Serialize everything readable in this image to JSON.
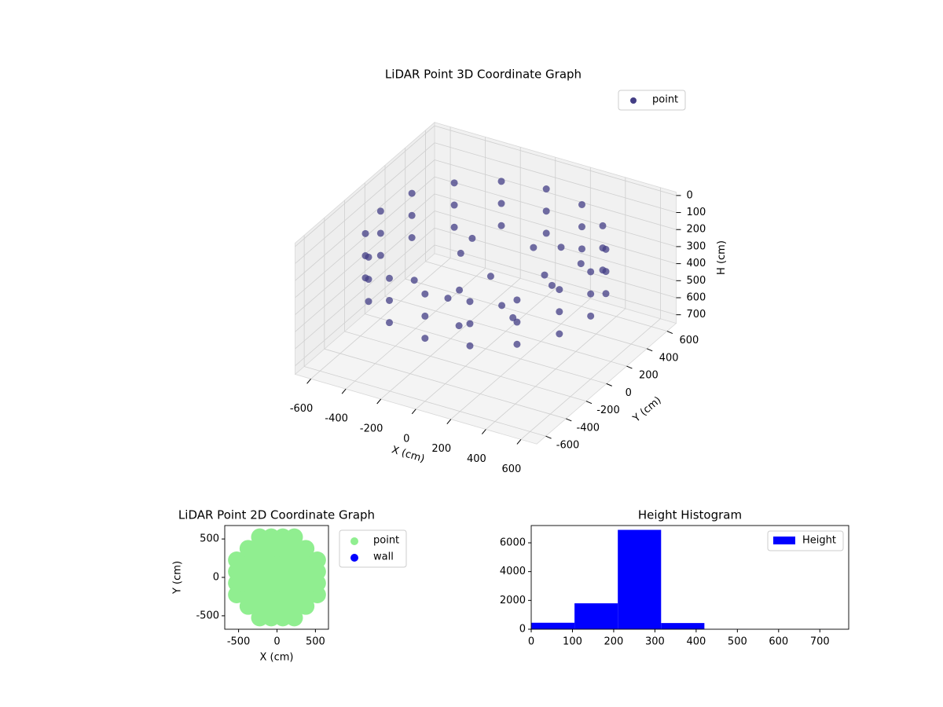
{
  "chart_data": [
    {
      "type": "scatter3d",
      "title": "LiDAR Point 3D Coordinate Graph",
      "xlabel": "X (cm)",
      "ylabel": "Y (cm)",
      "zlabel": "H (cm)",
      "xlim": [
        -690,
        690
      ],
      "ylim": [
        -690,
        690
      ],
      "zlim": [
        750,
        -20
      ],
      "xticks": [
        -600,
        -400,
        -200,
        0,
        200,
        400,
        600
      ],
      "yticks": [
        -600,
        -400,
        -200,
        0,
        200,
        400,
        600
      ],
      "zticks": [
        0,
        100,
        200,
        300,
        400,
        500,
        600,
        700
      ],
      "grid": true,
      "legend": "upper right",
      "series": [
        {
          "name": "point",
          "color": "#433e85",
          "x": [
            600,
            600,
            600,
            554,
            554,
            554,
            424,
            424,
            424,
            230,
            230,
            230,
            0,
            0,
            0,
            -230,
            -230,
            -230,
            -424,
            -424,
            -424,
            -554,
            -554,
            -554,
            -600,
            -600,
            -600,
            -554,
            -554,
            -554,
            -424,
            -424,
            -424,
            -230,
            -230,
            -230,
            0,
            0,
            0,
            230,
            230,
            230,
            424,
            424,
            424,
            554,
            554,
            554,
            -200,
            0,
            150,
            -100,
            250,
            300,
            -350,
            100,
            -250,
            200,
            50,
            -150,
            350,
            400
          ],
          "y": [
            0,
            0,
            0,
            230,
            230,
            230,
            424,
            424,
            424,
            554,
            554,
            554,
            600,
            600,
            600,
            554,
            554,
            554,
            424,
            424,
            424,
            230,
            230,
            230,
            0,
            0,
            0,
            -230,
            -230,
            -230,
            -424,
            -424,
            -424,
            -554,
            -554,
            -554,
            -600,
            -600,
            -600,
            -554,
            -554,
            -554,
            -424,
            -424,
            -424,
            -230,
            -230,
            -230,
            100,
            50,
            -100,
            -200,
            150,
            -250,
            -100,
            300,
            300,
            400,
            -350,
            0,
            50,
            250
          ],
          "z": [
            120,
            250,
            380,
            120,
            250,
            380,
            120,
            250,
            380,
            120,
            250,
            380,
            120,
            250,
            380,
            120,
            250,
            380,
            120,
            250,
            380,
            120,
            250,
            380,
            120,
            250,
            380,
            120,
            250,
            380,
            120,
            250,
            380,
            120,
            250,
            380,
            120,
            250,
            380,
            120,
            250,
            380,
            120,
            250,
            380,
            120,
            250,
            380,
            300,
            350,
            400,
            380,
            320,
            350,
            400,
            280,
            330,
            300,
            420,
            450,
            300,
            260
          ]
        }
      ]
    },
    {
      "type": "scatter",
      "title": "LiDAR Point 2D Coordinate Graph",
      "xlabel": "X (cm)",
      "ylabel": "Y (cm)",
      "xlim": [
        -680,
        670
      ],
      "ylim": [
        -675,
        675
      ],
      "xticks": [
        -500,
        0,
        500
      ],
      "yticks": [
        -500,
        0,
        500
      ],
      "legend": "outside-right",
      "series": [
        {
          "name": "point",
          "color": "#90ee90",
          "x": [
            -225,
            -75,
            75,
            225,
            -375,
            -225,
            -75,
            75,
            225,
            375,
            -525,
            -375,
            -225,
            -75,
            75,
            225,
            375,
            525,
            -525,
            -375,
            -225,
            -75,
            75,
            225,
            375,
            525,
            -525,
            -375,
            -225,
            -75,
            75,
            225,
            375,
            525,
            -525,
            -375,
            -225,
            -75,
            75,
            225,
            375,
            525,
            -375,
            -225,
            -75,
            75,
            225,
            375,
            -225,
            -75,
            75,
            225
          ],
          "y": [
            -525,
            -525,
            -525,
            -525,
            -375,
            -375,
            -375,
            -375,
            -375,
            -375,
            -225,
            -225,
            -225,
            -225,
            -225,
            -225,
            -225,
            -225,
            -75,
            -75,
            -75,
            -75,
            -75,
            -75,
            -75,
            -75,
            75,
            75,
            75,
            75,
            75,
            75,
            75,
            75,
            225,
            225,
            225,
            225,
            225,
            225,
            225,
            225,
            375,
            375,
            375,
            375,
            375,
            375,
            525,
            525,
            525,
            525
          ]
        },
        {
          "name": "wall",
          "color": "#0000ff",
          "x": [],
          "y": []
        }
      ]
    },
    {
      "type": "histogram",
      "title": "Height Histogram",
      "bins": [
        0,
        105,
        210,
        315,
        420,
        525,
        630,
        735
      ],
      "series": [
        {
          "name": "Height",
          "color": "#0000ff",
          "values": [
            450,
            1800,
            6900,
            430,
            10,
            5,
            3
          ]
        }
      ],
      "xlim": [
        0,
        770
      ],
      "ylim": [
        0,
        7200
      ],
      "xticks": [
        0,
        100,
        200,
        300,
        400,
        500,
        600,
        700
      ],
      "yticks": [
        0,
        2000,
        4000,
        6000
      ],
      "legend": "upper right"
    }
  ]
}
